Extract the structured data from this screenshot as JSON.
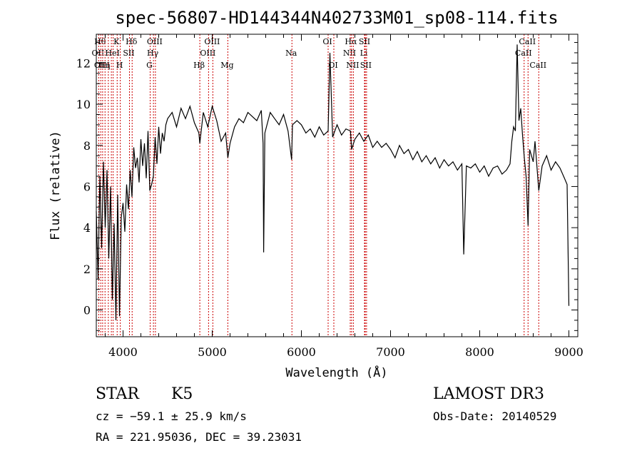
{
  "chart_data": {
    "type": "line",
    "title": "spec-56807-HD144344N402733M01_sp08-114.fits",
    "xlabel": "Wavelength (Å)",
    "ylabel": "Flux (relative)",
    "xlim": [
      3700,
      9100
    ],
    "ylim": [
      -1.3,
      13.4
    ],
    "x_ticks": [
      4000,
      5000,
      6000,
      7000,
      8000,
      9000
    ],
    "y_ticks": [
      0,
      2,
      4,
      6,
      8,
      10,
      12
    ],
    "grid": false,
    "line_color": "#000000",
    "marker_color": "#cc0000",
    "series": [
      {
        "x": [
          3700,
          3720,
          3740,
          3760,
          3780,
          3800,
          3820,
          3840,
          3860,
          3880,
          3900,
          3920,
          3940,
          3960,
          3980,
          4000,
          4020,
          4040,
          4060,
          4080,
          4100,
          4120,
          4140,
          4160,
          4180,
          4200,
          4220,
          4240,
          4260,
          4280,
          4300,
          4320,
          4340,
          4360,
          4380,
          4400,
          4420,
          4440,
          4460,
          4480,
          4500,
          4550,
          4600,
          4650,
          4700,
          4750,
          4800,
          4850,
          4861,
          4900,
          4950,
          5000,
          5050,
          5100,
          5150,
          5175,
          5200,
          5250,
          5300,
          5350,
          5400,
          5450,
          5500,
          5550,
          5570,
          5577,
          5590,
          5650,
          5700,
          5750,
          5800,
          5850,
          5890,
          5900,
          5950,
          6000,
          6050,
          6100,
          6150,
          6200,
          6250,
          6300,
          6320,
          6350,
          6400,
          6450,
          6500,
          6550,
          6563,
          6600,
          6650,
          6700,
          6750,
          6800,
          6850,
          6900,
          6950,
          7000,
          7050,
          7100,
          7150,
          7200,
          7250,
          7300,
          7350,
          7400,
          7450,
          7500,
          7550,
          7600,
          7650,
          7700,
          7750,
          7800,
          7821,
          7850,
          7900,
          7950,
          8000,
          8050,
          8100,
          8150,
          8200,
          8250,
          8300,
          8340,
          8360,
          8380,
          8400,
          8420,
          8440,
          8460,
          8480,
          8500,
          8520,
          8542,
          8560,
          8600,
          8620,
          8662,
          8700,
          8750,
          8800,
          8850,
          8900,
          8950,
          8980,
          9000
        ],
        "y": [
          4.8,
          1.5,
          6.5,
          3.0,
          7.2,
          4.0,
          6.8,
          2.5,
          6.0,
          0.5,
          4.2,
          -0.5,
          5.6,
          -0.3,
          4.5,
          5.2,
          3.8,
          6.1,
          4.9,
          6.8,
          5.5,
          7.9,
          6.9,
          7.4,
          6.2,
          8.3,
          7.0,
          8.1,
          6.4,
          8.7,
          5.8,
          6.1,
          6.5,
          8.4,
          7.1,
          8.9,
          7.6,
          8.6,
          8.2,
          9.0,
          9.3,
          9.6,
          8.9,
          9.8,
          9.3,
          9.9,
          9.1,
          8.6,
          8.1,
          9.6,
          8.9,
          9.9,
          9.2,
          8.2,
          8.6,
          7.4,
          8.1,
          8.9,
          9.3,
          9.1,
          9.6,
          9.4,
          9.2,
          9.7,
          8.1,
          2.8,
          8.6,
          9.6,
          9.3,
          9.0,
          9.5,
          8.7,
          7.3,
          9.0,
          9.2,
          9.0,
          8.6,
          8.8,
          8.4,
          8.9,
          8.5,
          8.7,
          12.5,
          8.4,
          9.0,
          8.5,
          8.8,
          8.7,
          7.8,
          8.3,
          8.6,
          8.2,
          8.5,
          7.9,
          8.2,
          7.9,
          8.1,
          7.8,
          7.4,
          8.0,
          7.6,
          7.8,
          7.3,
          7.7,
          7.2,
          7.5,
          7.1,
          7.4,
          6.9,
          7.3,
          7.0,
          7.2,
          6.8,
          7.1,
          2.7,
          7.0,
          6.9,
          7.1,
          6.7,
          7.0,
          6.5,
          6.9,
          7.0,
          6.6,
          6.8,
          7.1,
          8.2,
          8.9,
          8.7,
          12.9,
          9.2,
          9.8,
          8.5,
          7.4,
          6.5,
          4.1,
          7.8,
          7.2,
          8.2,
          5.8,
          7.0,
          7.5,
          6.8,
          7.2,
          6.9,
          6.4,
          6.1,
          0.2
        ]
      }
    ],
    "line_markers": [
      {
        "x": 3727,
        "label": "OII",
        "row": 2
      },
      {
        "x": 3750,
        "label": "Hθ",
        "row": 1
      },
      {
        "x": 3771,
        "label": "OIII",
        "row": 3
      },
      {
        "x": 3798,
        "label": "Hη",
        "row": 3
      },
      {
        "x": 3835,
        "label": "",
        "row": 0
      },
      {
        "x": 3869,
        "label": "",
        "row": 0
      },
      {
        "x": 3889,
        "label": "HeI",
        "row": 2
      },
      {
        "x": 3934,
        "label": "K",
        "row": 1
      },
      {
        "x": 3969,
        "label": "H",
        "row": 3
      },
      {
        "x": 4072,
        "label": "SII",
        "row": 2
      },
      {
        "x": 4102,
        "label": "Hδ",
        "row": 1
      },
      {
        "x": 4304,
        "label": "G",
        "row": 3
      },
      {
        "x": 4341,
        "label": "Hγ",
        "row": 2
      },
      {
        "x": 4363,
        "label": "OIII",
        "row": 1
      },
      {
        "x": 4861,
        "label": "Hβ",
        "row": 3
      },
      {
        "x": 4959,
        "label": "OIII",
        "row": 2
      },
      {
        "x": 5007,
        "label": "OIII",
        "row": 1
      },
      {
        "x": 5175,
        "label": "Mg",
        "row": 3
      },
      {
        "x": 5894,
        "label": "Na",
        "row": 2
      },
      {
        "x": 6300,
        "label": "OI",
        "row": 1
      },
      {
        "x": 6364,
        "label": "OI",
        "row": 3
      },
      {
        "x": 6548,
        "label": "NII",
        "row": 2
      },
      {
        "x": 6563,
        "label": "Hα",
        "row": 1
      },
      {
        "x": 6583,
        "label": "NII",
        "row": 3
      },
      {
        "x": 6708,
        "label": "Li",
        "row": 2
      },
      {
        "x": 6716,
        "label": "SII",
        "row": 1
      },
      {
        "x": 6731,
        "label": "SII",
        "row": 3
      },
      {
        "x": 8498,
        "label": "CaII",
        "row": 2
      },
      {
        "x": 8542,
        "label": "CaII",
        "row": 1
      },
      {
        "x": 8662,
        "label": "CaII",
        "row": 3
      }
    ]
  },
  "info": {
    "class_label": "STAR",
    "subclass_label": "K5",
    "survey_label": "LAMOST DR3",
    "cz_text": "cz = −59.1 ± 25.9 km/s",
    "obs_date_text": "Obs-Date: 20140529",
    "coords_text": "RA = 221.95036, DEC =  39.23031"
  }
}
